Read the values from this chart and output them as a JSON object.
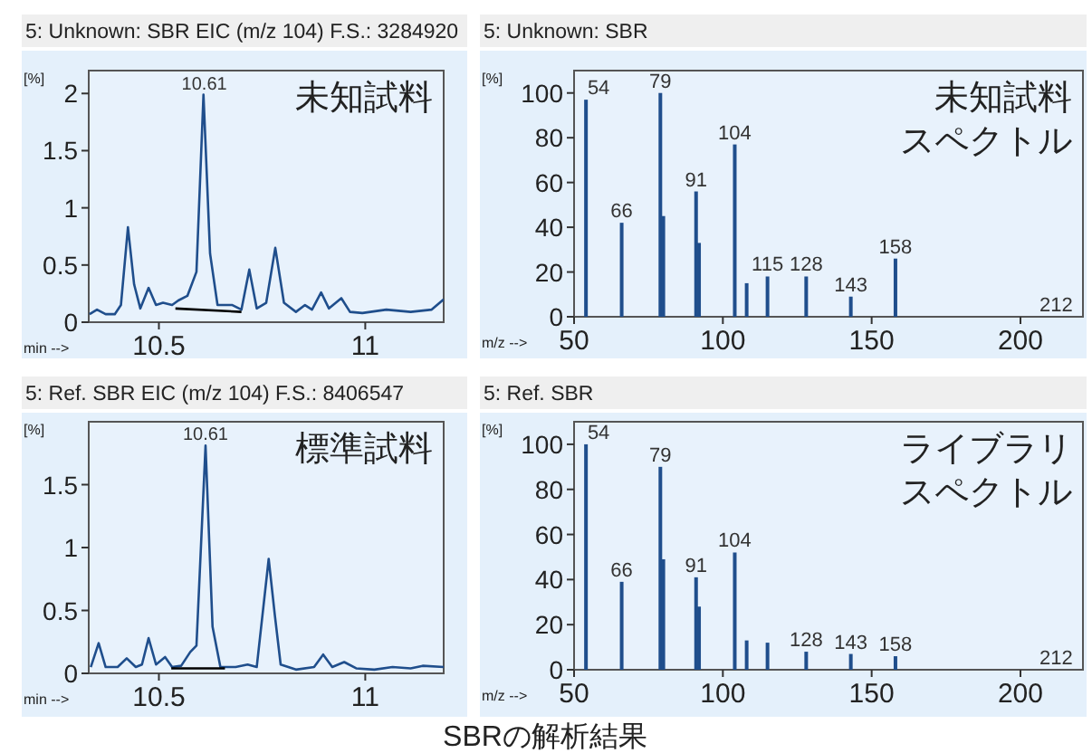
{
  "chart_data": [
    {
      "type": "line",
      "title": "5: Unknown: SBR EIC (m/z 104) F.S.: 3284920",
      "xlabel": "min -->",
      "ylabel": "[%]",
      "xlim": [
        10.33,
        11.19
      ],
      "ylim": [
        0,
        2.2
      ],
      "xticks": [
        10.5,
        11
      ],
      "yticks": [
        0,
        0.5,
        1,
        1.5,
        2
      ],
      "x": [
        10.332,
        10.35,
        10.371,
        10.393,
        10.408,
        10.425,
        10.44,
        10.455,
        10.475,
        10.493,
        10.51,
        10.532,
        10.547,
        10.569,
        10.591,
        10.608,
        10.624,
        10.642,
        10.678,
        10.7,
        10.719,
        10.737,
        10.76,
        10.782,
        10.803,
        10.832,
        10.854,
        10.871,
        10.893,
        10.912,
        10.942,
        10.963,
        10.993,
        11.051,
        11.11,
        11.161,
        11.19
      ],
      "series": [
        {
          "color": "#1f4e8c",
          "values": [
            0.07,
            0.11,
            0.07,
            0.07,
            0.15,
            0.83,
            0.33,
            0.12,
            0.3,
            0.15,
            0.17,
            0.15,
            0.19,
            0.23,
            0.44,
            1.99,
            0.6,
            0.15,
            0.15,
            0.11,
            0.46,
            0.12,
            0.17,
            0.65,
            0.17,
            0.09,
            0.15,
            0.11,
            0.26,
            0.12,
            0.21,
            0.09,
            0.08,
            0.11,
            0.09,
            0.11,
            0.2
          ]
        },
        {
          "color": "#000000",
          "x": [
            10.54,
            10.7
          ],
          "values": [
            0.12,
            0.09
          ]
        }
      ],
      "annotations": [
        "未知試料",
        {
          "text": "10.61",
          "x": 10.61,
          "y": 1.99
        }
      ]
    },
    {
      "type": "bar",
      "title": "5: Unknown: SBR",
      "xlabel": "m/z -->",
      "ylabel": "[%]",
      "xlim": [
        50,
        221
      ],
      "ylim": [
        0,
        110
      ],
      "xticks": [
        50,
        100,
        150,
        200
      ],
      "yticks": [
        0,
        20,
        40,
        60,
        80,
        100
      ],
      "color": "#1f4e8c",
      "x": [
        54,
        66,
        79,
        80,
        91,
        92,
        104,
        108,
        115,
        128,
        143,
        158,
        212
      ],
      "values": [
        97,
        42,
        100,
        45,
        56,
        33,
        77,
        15,
        18,
        18,
        9,
        26,
        0
      ],
      "annotations": [
        "未知試料",
        "スペクトル",
        {
          "text": "54",
          "x": 54,
          "y": 97
        },
        {
          "text": "66",
          "x": 66,
          "y": 42
        },
        {
          "text": "79",
          "x": 79,
          "y": 100
        },
        {
          "text": "91",
          "x": 91,
          "y": 56
        },
        {
          "text": "104",
          "x": 104,
          "y": 77
        },
        {
          "text": "115",
          "x": 115,
          "y": 18
        },
        {
          "text": "128",
          "x": 128,
          "y": 18
        },
        {
          "text": "143",
          "x": 143,
          "y": 9
        },
        {
          "text": "158",
          "x": 158,
          "y": 26
        },
        {
          "text": "212",
          "x": 212,
          "y": 0
        }
      ]
    },
    {
      "type": "line",
      "title": "5: Ref. SBR EIC (m/z 104) F.S.: 8406547",
      "xlabel": "min -->",
      "ylabel": "[%]",
      "xlim": [
        10.33,
        11.19
      ],
      "ylim": [
        0,
        2
      ],
      "xticks": [
        10.5,
        11
      ],
      "yticks": [
        0,
        0.5,
        1,
        1.5
      ],
      "x": [
        10.335,
        10.354,
        10.371,
        10.4,
        10.422,
        10.444,
        10.459,
        10.475,
        10.493,
        10.515,
        10.532,
        10.554,
        10.576,
        10.591,
        10.613,
        10.63,
        10.649,
        10.686,
        10.715,
        10.737,
        10.766,
        10.781,
        10.795,
        10.832,
        10.876,
        10.898,
        10.92,
        10.949,
        10.978,
        11.022,
        11.066,
        11.11,
        11.139,
        11.19
      ],
      "series": [
        {
          "color": "#1f4e8c",
          "values": [
            0.05,
            0.24,
            0.05,
            0.05,
            0.12,
            0.05,
            0.07,
            0.28,
            0.07,
            0.13,
            0.05,
            0.06,
            0.17,
            0.22,
            1.81,
            0.37,
            0.05,
            0.05,
            0.07,
            0.05,
            0.91,
            0.46,
            0.07,
            0.03,
            0.05,
            0.15,
            0.05,
            0.09,
            0.04,
            0.03,
            0.05,
            0.04,
            0.06,
            0.05
          ]
        },
        {
          "color": "#000000",
          "x": [
            10.53,
            10.66
          ],
          "values": [
            0.04,
            0.04
          ]
        }
      ],
      "annotations": [
        "標準試料",
        {
          "text": "10.61",
          "x": 10.613,
          "y": 1.81
        }
      ]
    },
    {
      "type": "bar",
      "title": "5: Ref. SBR",
      "xlabel": "m/z -->",
      "ylabel": "[%]",
      "xlim": [
        50,
        221
      ],
      "ylim": [
        0,
        110
      ],
      "xticks": [
        50,
        100,
        150,
        200
      ],
      "yticks": [
        0,
        20,
        40,
        60,
        80,
        100
      ],
      "color": "#1f4e8c",
      "x": [
        54,
        66,
        79,
        80,
        91,
        92,
        104,
        108,
        115,
        128,
        143,
        158,
        212
      ],
      "values": [
        100,
        39,
        90,
        49,
        41,
        28,
        52,
        13,
        12,
        8,
        7,
        6,
        0
      ],
      "annotations": [
        "ライブラリ",
        "スペクトル",
        {
          "text": "54",
          "x": 54,
          "y": 100
        },
        {
          "text": "66",
          "x": 66,
          "y": 39
        },
        {
          "text": "79",
          "x": 79,
          "y": 90
        },
        {
          "text": "91",
          "x": 91,
          "y": 41
        },
        {
          "text": "104",
          "x": 104,
          "y": 52
        },
        {
          "text": "128",
          "x": 128,
          "y": 8
        },
        {
          "text": "143",
          "x": 143,
          "y": 7
        },
        {
          "text": "158",
          "x": 158,
          "y": 6
        },
        {
          "text": "212",
          "x": 212,
          "y": 0
        },
        "SBRの解析結果"
      ]
    }
  ]
}
